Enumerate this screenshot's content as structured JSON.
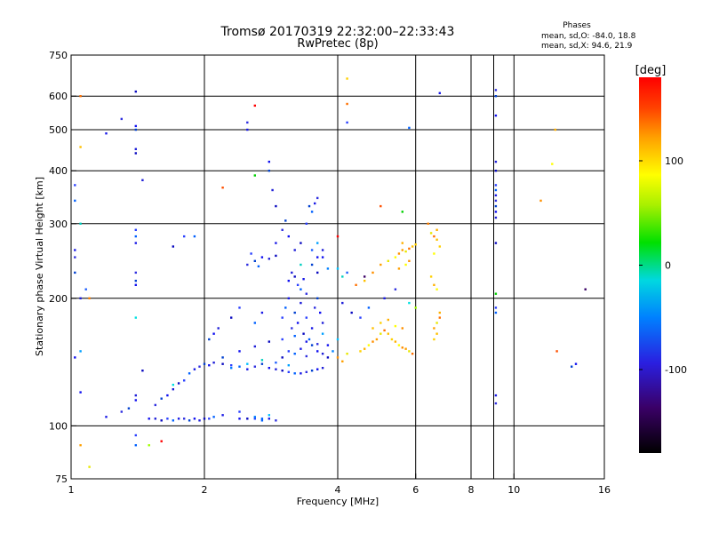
{
  "title_line1": "Tromsø 20170319 22:32:00–22:33:43",
  "title_line2": "RwPretec (8p)",
  "stats": {
    "heading": "Phases",
    "line_o": "mean, sd,O: -84.0, 18.8",
    "line_x": "mean, sd,X:  94.6, 21.9"
  },
  "chart_data": {
    "type": "scatter",
    "xlabel": "Frequency [MHz]",
    "ylabel": "Stationary phase Virtual Height [km]",
    "x_scale": "log",
    "y_scale": "log",
    "xlim": [
      1,
      16
    ],
    "ylim": [
      75,
      750
    ],
    "x_ticks": [
      {
        "value": 1,
        "label": "1"
      },
      {
        "value": 2,
        "label": "2"
      },
      {
        "value": 4,
        "label": "4"
      },
      {
        "value": 6,
        "label": "6"
      },
      {
        "value": 8,
        "label": "8"
      },
      {
        "value": 10,
        "label": "10"
      },
      {
        "value": 16,
        "label": "16"
      }
    ],
    "y_ticks": [
      {
        "value": 75,
        "label": "75"
      },
      {
        "value": 100,
        "label": "100"
      },
      {
        "value": 200,
        "label": "200"
      },
      {
        "value": 300,
        "label": "300"
      },
      {
        "value": 400,
        "label": "400"
      },
      {
        "value": 500,
        "label": "500"
      },
      {
        "value": 600,
        "label": "600"
      },
      {
        "value": 750,
        "label": "750"
      }
    ],
    "x_grid": [
      2,
      4,
      6,
      8,
      9,
      10
    ],
    "y_grid": [
      100,
      200,
      300,
      400,
      500,
      600
    ],
    "grid": true,
    "colorbar": {
      "label": "[deg]",
      "range": [
        -180,
        180
      ],
      "ticks": [
        {
          "value": 100,
          "label": "100"
        },
        {
          "value": 0,
          "label": "0"
        },
        {
          "value": -100,
          "label": "-100"
        }
      ]
    },
    "series": [
      {
        "color_mode": "O",
        "points": [
          [
            1.5,
            104
          ],
          [
            1.55,
            104
          ],
          [
            1.6,
            103
          ],
          [
            1.65,
            104
          ],
          [
            1.7,
            103
          ],
          [
            1.75,
            104
          ],
          [
            1.8,
            104
          ],
          [
            1.85,
            103
          ],
          [
            1.9,
            104
          ],
          [
            1.95,
            103
          ],
          [
            2.0,
            104
          ],
          [
            2.05,
            104
          ],
          [
            2.1,
            105
          ],
          [
            2.2,
            106
          ],
          [
            1.55,
            112
          ],
          [
            1.6,
            116
          ],
          [
            1.65,
            118
          ],
          [
            1.7,
            122
          ],
          [
            1.75,
            126
          ],
          [
            1.8,
            128
          ],
          [
            1.85,
            133
          ],
          [
            1.9,
            136
          ],
          [
            1.95,
            138
          ],
          [
            2.0,
            140
          ],
          [
            2.05,
            139
          ],
          [
            2.1,
            141
          ],
          [
            2.2,
            140
          ],
          [
            2.3,
            139
          ],
          [
            2.4,
            138
          ],
          [
            2.5,
            136
          ],
          [
            2.6,
            138
          ],
          [
            2.7,
            140
          ],
          [
            2.8,
            137
          ],
          [
            2.9,
            136
          ],
          [
            3.0,
            135
          ],
          [
            3.1,
            134
          ],
          [
            3.2,
            133
          ],
          [
            3.3,
            133
          ],
          [
            3.4,
            134
          ],
          [
            3.5,
            135
          ],
          [
            3.6,
            136
          ],
          [
            3.7,
            137
          ],
          [
            2.5,
            104
          ],
          [
            2.6,
            104
          ],
          [
            2.7,
            103
          ],
          [
            2.8,
            104
          ],
          [
            2.9,
            103
          ],
          [
            2.2,
            145
          ],
          [
            2.4,
            150
          ],
          [
            2.6,
            154
          ],
          [
            2.8,
            158
          ],
          [
            3.0,
            160
          ],
          [
            3.2,
            163
          ],
          [
            3.4,
            158
          ],
          [
            3.6,
            156
          ],
          [
            2.05,
            160
          ],
          [
            2.1,
            165
          ],
          [
            2.15,
            170
          ],
          [
            2.3,
            180
          ],
          [
            2.4,
            190
          ],
          [
            2.6,
            175
          ],
          [
            2.7,
            185
          ],
          [
            2.5,
            240
          ],
          [
            2.6,
            245
          ],
          [
            2.7,
            250
          ],
          [
            2.8,
            248
          ],
          [
            2.9,
            252
          ],
          [
            2.55,
            255
          ],
          [
            2.65,
            238
          ],
          [
            2.9,
            270
          ],
          [
            3.0,
            290
          ],
          [
            3.05,
            305
          ],
          [
            3.1,
            280
          ],
          [
            3.2,
            260
          ],
          [
            3.3,
            270
          ],
          [
            3.4,
            300
          ],
          [
            3.5,
            320
          ],
          [
            3.55,
            335
          ],
          [
            3.6,
            345
          ],
          [
            3.45,
            330
          ],
          [
            3.1,
            220
          ],
          [
            3.15,
            230
          ],
          [
            3.2,
            225
          ],
          [
            3.25,
            215
          ],
          [
            3.3,
            210
          ],
          [
            3.35,
            222
          ],
          [
            3.4,
            205
          ],
          [
            3.5,
            240
          ],
          [
            3.6,
            250
          ],
          [
            3.7,
            260
          ],
          [
            3.6,
            230
          ],
          [
            3.0,
            180
          ],
          [
            3.05,
            190
          ],
          [
            3.1,
            200
          ],
          [
            3.15,
            170
          ],
          [
            3.2,
            185
          ],
          [
            3.25,
            175
          ],
          [
            3.3,
            195
          ],
          [
            3.35,
            165
          ],
          [
            3.4,
            180
          ],
          [
            3.45,
            160
          ],
          [
            3.5,
            170
          ],
          [
            3.55,
            190
          ],
          [
            3.6,
            200
          ],
          [
            3.65,
            185
          ],
          [
            3.7,
            175
          ],
          [
            3.0,
            145
          ],
          [
            3.1,
            150
          ],
          [
            3.2,
            148
          ],
          [
            3.3,
            152
          ],
          [
            3.4,
            146
          ],
          [
            3.5,
            155
          ],
          [
            3.6,
            150
          ],
          [
            3.7,
            148
          ],
          [
            3.8,
            145
          ],
          [
            2.4,
            108
          ],
          [
            2.7,
            104
          ],
          [
            1.2,
            105
          ],
          [
            1.3,
            108
          ],
          [
            1.35,
            110
          ],
          [
            1.4,
            115
          ],
          [
            1.4,
            118
          ],
          [
            1.45,
            135
          ],
          [
            1.4,
            95
          ],
          [
            1.4,
            90
          ],
          [
            1.2,
            490
          ],
          [
            1.3,
            530
          ],
          [
            1.4,
            500
          ],
          [
            1.4,
            510
          ],
          [
            1.4,
            450
          ],
          [
            1.4,
            440
          ],
          [
            1.4,
            290
          ],
          [
            1.4,
            280
          ],
          [
            1.4,
            270
          ],
          [
            1.4,
            230
          ],
          [
            1.4,
            220
          ],
          [
            1.4,
            215
          ],
          [
            1.45,
            380
          ],
          [
            1.4,
            615
          ],
          [
            1.02,
            370
          ],
          [
            1.02,
            340
          ],
          [
            1.02,
            260
          ],
          [
            1.02,
            250
          ],
          [
            1.02,
            230
          ],
          [
            1.02,
            145
          ],
          [
            1.05,
            200
          ],
          [
            1.7,
            265
          ],
          [
            1.8,
            280
          ],
          [
            1.9,
            280
          ],
          [
            2.5,
            500
          ],
          [
            2.5,
            520
          ],
          [
            2.8,
            400
          ],
          [
            2.8,
            420
          ],
          [
            2.85,
            360
          ],
          [
            2.9,
            330
          ],
          [
            4.2,
            520
          ],
          [
            5.8,
            505
          ],
          [
            6.8,
            610
          ],
          [
            9.1,
            620
          ],
          [
            9.1,
            600
          ],
          [
            9.1,
            540
          ],
          [
            9.1,
            420
          ],
          [
            9.1,
            400
          ],
          [
            9.1,
            370
          ],
          [
            9.1,
            360
          ],
          [
            9.1,
            350
          ],
          [
            9.1,
            340
          ],
          [
            9.1,
            330
          ],
          [
            9.1,
            320
          ],
          [
            9.1,
            310
          ],
          [
            9.1,
            270
          ],
          [
            9.1,
            190
          ],
          [
            9.1,
            185
          ],
          [
            9.1,
            118
          ],
          [
            9.1,
            113
          ],
          [
            13.5,
            138
          ],
          [
            13.8,
            140
          ],
          [
            4.1,
            195
          ],
          [
            4.3,
            185
          ],
          [
            4.5,
            180
          ],
          [
            4.7,
            190
          ],
          [
            5.1,
            200
          ],
          [
            5.4,
            210
          ]
        ]
      },
      {
        "color_mode": "mixed",
        "points": [
          [
            2.3,
            137
          ],
          [
            2.5,
            140
          ],
          [
            2.7,
            143
          ],
          [
            2.9,
            141
          ],
          [
            3.1,
            139
          ],
          [
            2.4,
            104
          ],
          [
            2.6,
            105
          ],
          [
            2.8,
            106
          ],
          [
            3.3,
            240
          ],
          [
            3.5,
            260
          ],
          [
            3.6,
            270
          ],
          [
            3.7,
            250
          ],
          [
            3.8,
            235
          ],
          [
            4.0,
            235
          ],
          [
            4.1,
            225
          ],
          [
            4.2,
            230
          ],
          [
            3.7,
            165
          ],
          [
            3.8,
            155
          ],
          [
            3.9,
            150
          ],
          [
            4.0,
            160
          ],
          [
            1.05,
            300
          ],
          [
            1.08,
            210
          ],
          [
            1.05,
            150
          ],
          [
            1.05,
            120
          ]
        ]
      },
      {
        "color_mode": "X",
        "points": [
          [
            4.5,
            150
          ],
          [
            4.6,
            152
          ],
          [
            4.7,
            155
          ],
          [
            4.8,
            158
          ],
          [
            4.9,
            160
          ],
          [
            5.0,
            165
          ],
          [
            5.1,
            168
          ],
          [
            5.2,
            165
          ],
          [
            5.3,
            160
          ],
          [
            5.4,
            158
          ],
          [
            5.5,
            155
          ],
          [
            5.6,
            153
          ],
          [
            5.7,
            152
          ],
          [
            5.8,
            150
          ],
          [
            5.9,
            148
          ],
          [
            4.8,
            170
          ],
          [
            5.0,
            175
          ],
          [
            5.2,
            178
          ],
          [
            5.4,
            172
          ],
          [
            5.6,
            170
          ],
          [
            6.6,
            170
          ],
          [
            6.7,
            175
          ],
          [
            6.8,
            180
          ],
          [
            6.7,
            165
          ],
          [
            6.6,
            160
          ],
          [
            6.8,
            185
          ],
          [
            5.4,
            250
          ],
          [
            5.5,
            255
          ],
          [
            5.6,
            260
          ],
          [
            5.7,
            258
          ],
          [
            5.8,
            262
          ],
          [
            5.9,
            265
          ],
          [
            6.0,
            268
          ],
          [
            5.6,
            270
          ],
          [
            5.7,
            240
          ],
          [
            5.8,
            245
          ],
          [
            5.5,
            235
          ],
          [
            6.5,
            285
          ],
          [
            6.6,
            280
          ],
          [
            6.7,
            275
          ],
          [
            6.8,
            265
          ],
          [
            6.7,
            290
          ],
          [
            6.6,
            255
          ],
          [
            4.8,
            230
          ],
          [
            5.0,
            240
          ],
          [
            5.2,
            245
          ],
          [
            4.4,
            215
          ],
          [
            4.6,
            220
          ],
          [
            6.5,
            225
          ],
          [
            6.6,
            215
          ],
          [
            6.7,
            210
          ],
          [
            4.0,
            145
          ],
          [
            4.1,
            142
          ],
          [
            4.2,
            148
          ],
          [
            1.05,
            600
          ],
          [
            1.05,
            455
          ],
          [
            4.2,
            660
          ],
          [
            12.4,
            500
          ],
          [
            12.2,
            415
          ],
          [
            11.5,
            340
          ],
          [
            1.05,
            90
          ],
          [
            1.1,
            80
          ],
          [
            4.2,
            575
          ]
        ]
      },
      {
        "color_mode": "sparse",
        "points": [
          [
            2.2,
            365
          ],
          [
            2.6,
            390
          ],
          [
            2.6,
            570
          ],
          [
            1.4,
            180
          ],
          [
            1.5,
            90
          ],
          [
            1.1,
            200
          ],
          [
            4.6,
            225
          ],
          [
            5.0,
            330
          ],
          [
            5.6,
            320
          ],
          [
            4.0,
            280
          ],
          [
            5.8,
            195
          ],
          [
            6.0,
            190
          ],
          [
            6.4,
            300
          ],
          [
            14.5,
            210
          ],
          [
            12.5,
            150
          ],
          [
            9.1,
            205
          ],
          [
            1.6,
            92
          ],
          [
            1.7,
            125
          ]
        ]
      }
    ]
  }
}
